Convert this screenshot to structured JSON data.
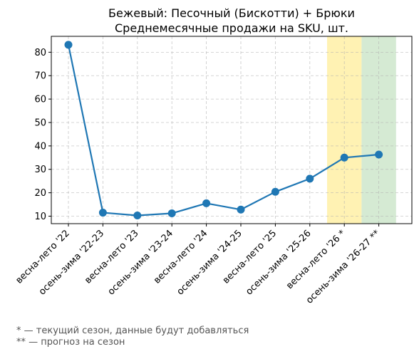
{
  "chart_data": {
    "type": "line",
    "title": "Бежевый: Песочный (Бискотти) + Брюки",
    "subtitle": "Среднемесячные продажи на SKU, шт.",
    "categories": [
      "весна-лето '22",
      "осень-зима '22-23",
      "весна-лето '23",
      "осень-зима '23-24",
      "весна-лето '24",
      "осень-зима '24-25",
      "весна-лето '25",
      "осень-зима '25-26",
      "весна-лето '26 *",
      "осень-зима '26-27 **"
    ],
    "series": [
      {
        "values": [
          83.2,
          11.5,
          10.3,
          11.2,
          15.5,
          12.8,
          20.4,
          26.0,
          35.0,
          36.3
        ],
        "color": "#1f77b4"
      }
    ],
    "ylim": [
      6.8,
      86.8
    ],
    "yticks": [
      10,
      20,
      30,
      40,
      50,
      60,
      70,
      80
    ],
    "grid": true,
    "highlights": [
      {
        "category": "весна-лето '26 *",
        "meaning": "current season",
        "color": "#fff2b3"
      },
      {
        "category": "осень-зима '26-27 **",
        "meaning": "forecast",
        "color": "#d5ead3"
      }
    ]
  },
  "footnotes": {
    "current": "* — текущий сезон, данные будут добавляться",
    "forecast": "** — прогноз на сезон"
  }
}
